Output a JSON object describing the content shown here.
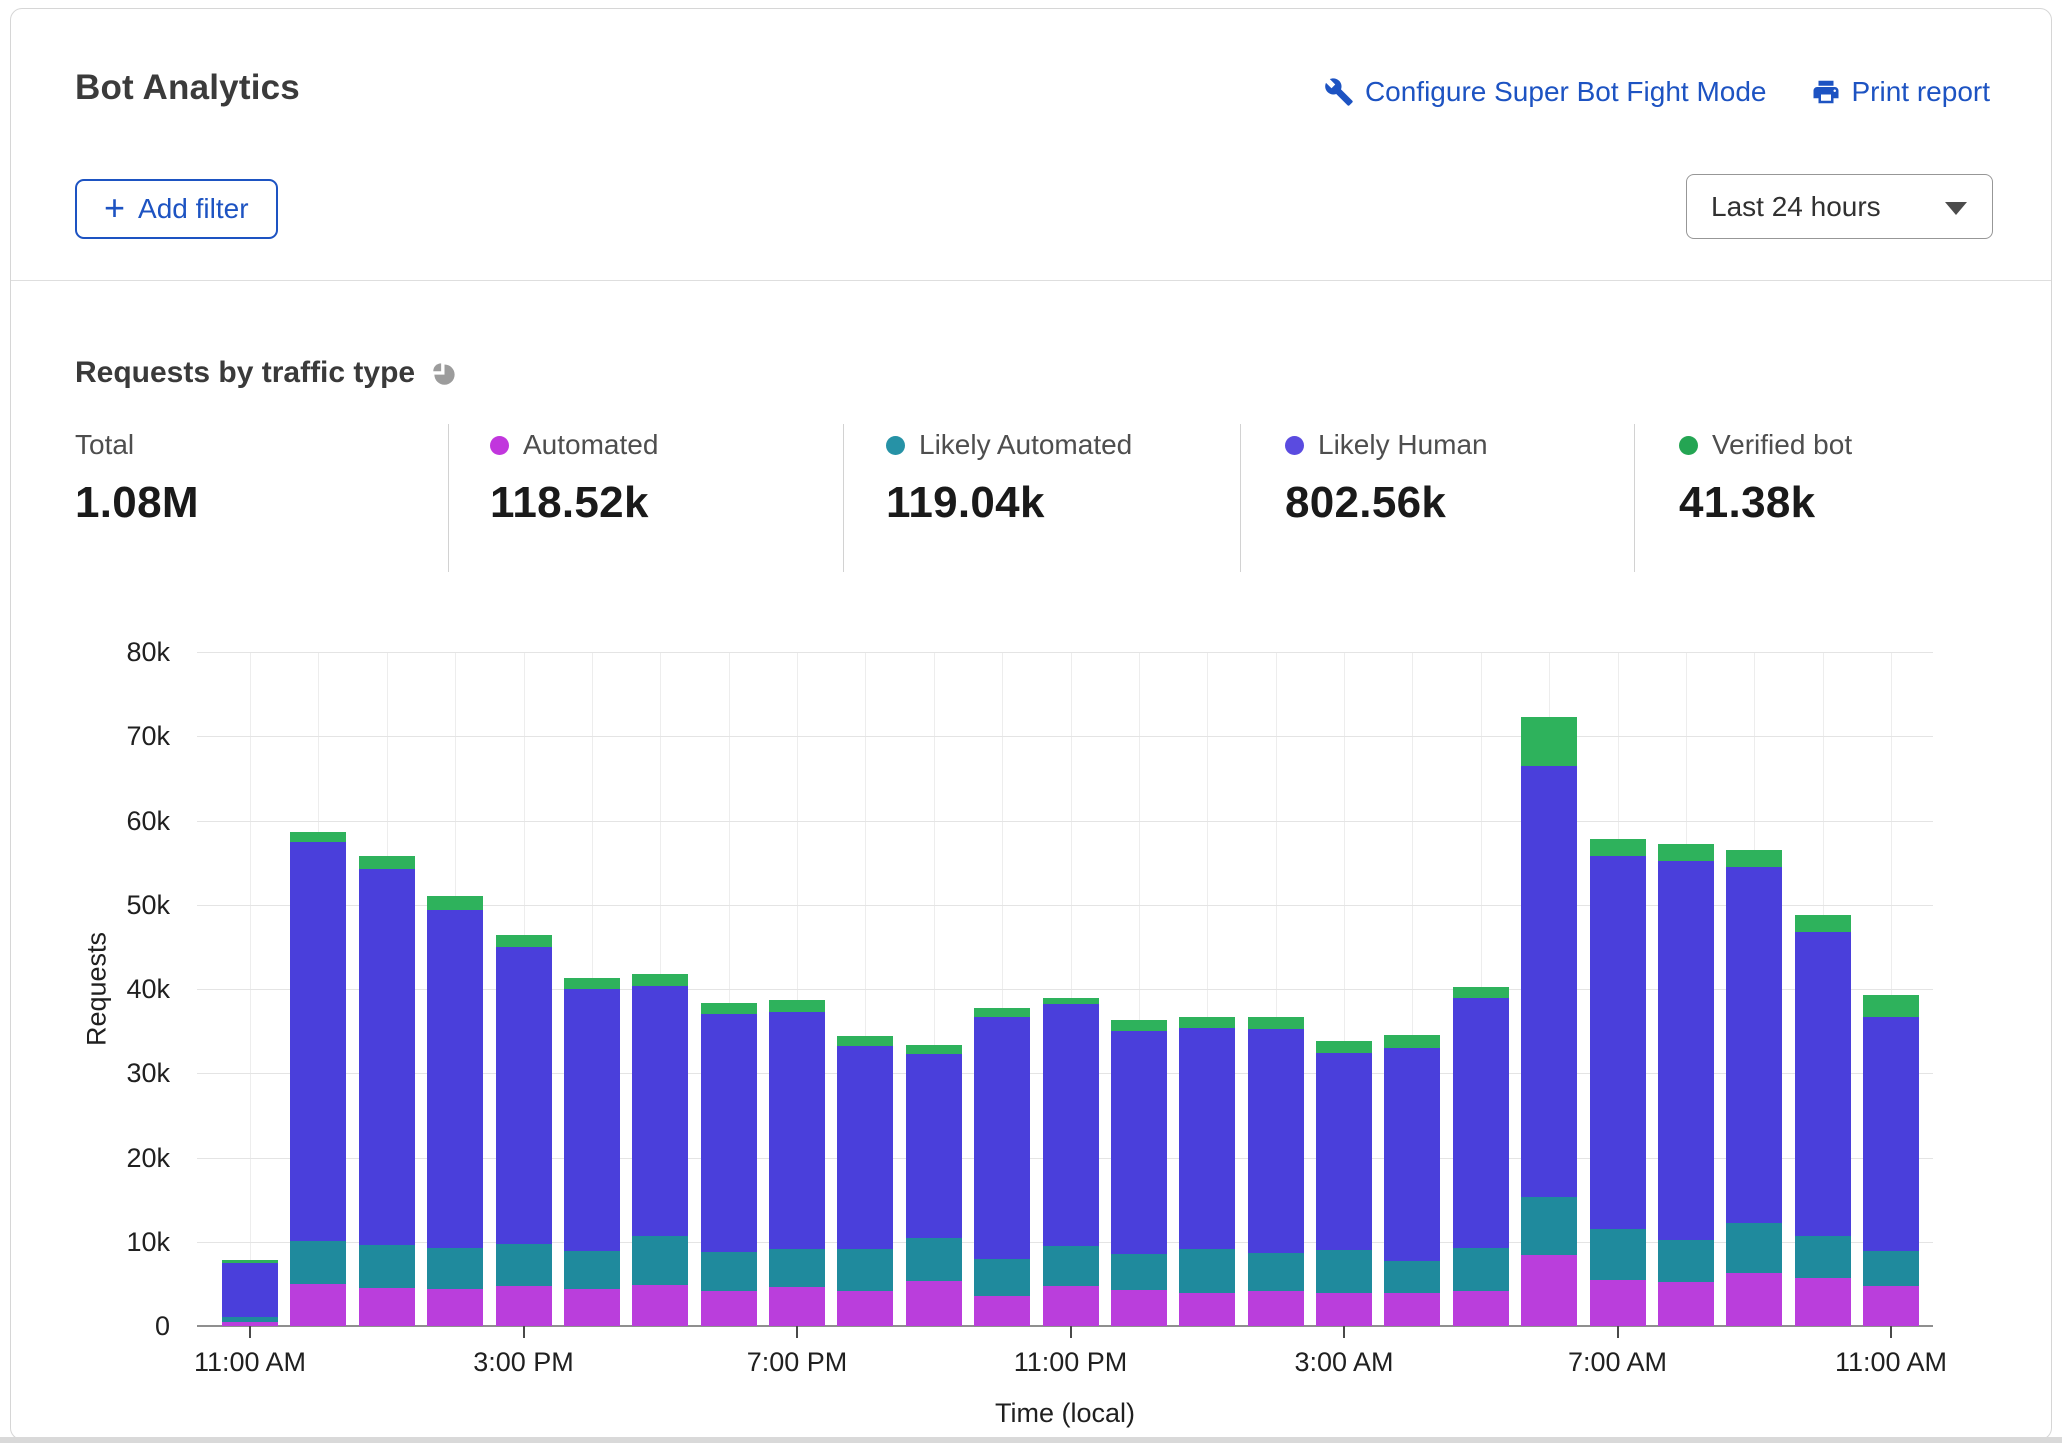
{
  "header": {
    "title": "Bot Analytics",
    "links": [
      {
        "label": "Configure Super Bot Fight Mode",
        "icon": "wrench-icon"
      },
      {
        "label": "Print report",
        "icon": "printer-icon"
      }
    ],
    "add_filter_label": "Add filter",
    "time_range": "Last 24 hours"
  },
  "section": {
    "title": "Requests by traffic type",
    "icon": "pie-chart-icon"
  },
  "stats": [
    {
      "label": "Total",
      "value": "1.08M",
      "color": null
    },
    {
      "label": "Automated",
      "value": "118.52k",
      "color": "#c136dd"
    },
    {
      "label": "Likely Automated",
      "value": "119.04k",
      "color": "#2692a6"
    },
    {
      "label": "Likely Human",
      "value": "802.56k",
      "color": "#5a4be0"
    },
    {
      "label": "Verified bot",
      "value": "41.38k",
      "color": "#24a553"
    }
  ],
  "colors": {
    "link_blue": "#1d53c2",
    "grid": "#e4e4e4",
    "axis_text": "#202020"
  },
  "chart_data": {
    "type": "bar",
    "stacked": true,
    "title": "Requests by traffic type",
    "xlabel": "Time (local)",
    "ylabel": "Requests",
    "ylim": [
      0,
      80000
    ],
    "grid": true,
    "n_bars": 25,
    "bar_interval": "1 hour",
    "yticks": [
      {
        "value": 0,
        "label": "0"
      },
      {
        "value": 10000,
        "label": "10k"
      },
      {
        "value": 20000,
        "label": "20k"
      },
      {
        "value": 30000,
        "label": "30k"
      },
      {
        "value": 40000,
        "label": "40k"
      },
      {
        "value": 50000,
        "label": "50k"
      },
      {
        "value": 60000,
        "label": "60k"
      },
      {
        "value": 70000,
        "label": "70k"
      },
      {
        "value": 80000,
        "label": "80k"
      }
    ],
    "xticks": [
      {
        "slot": 0,
        "label": "11:00 AM"
      },
      {
        "slot": 4,
        "label": "3:00 PM"
      },
      {
        "slot": 8,
        "label": "7:00 PM"
      },
      {
        "slot": 12,
        "label": "11:00 PM"
      },
      {
        "slot": 16,
        "label": "3:00 AM"
      },
      {
        "slot": 20,
        "label": "7:00 AM"
      },
      {
        "slot": 24,
        "label": "11:00 AM"
      }
    ],
    "series": [
      {
        "name": "Automated",
        "color": "#ba3edc",
        "values": [
          500,
          5000,
          4500,
          4400,
          4800,
          4400,
          4900,
          4100,
          4600,
          4200,
          5300,
          3600,
          4700,
          4300,
          3900,
          4200,
          3900,
          3900,
          4100,
          8400,
          5500,
          5200,
          6300,
          5700,
          4700
        ]
      },
      {
        "name": "Likely Automated",
        "color": "#1f8a9d",
        "values": [
          600,
          5100,
          5100,
          4900,
          4900,
          4500,
          5800,
          4700,
          4500,
          4900,
          5200,
          4300,
          4800,
          4300,
          5300,
          4500,
          5100,
          3800,
          5200,
          6900,
          6000,
          5000,
          5900,
          5000,
          4200
        ]
      },
      {
        "name": "Likely Human",
        "color": "#4a3fdb",
        "values": [
          6400,
          47300,
          44600,
          40100,
          35300,
          31100,
          29600,
          28200,
          28200,
          24100,
          21800,
          28800,
          28700,
          26400,
          26200,
          26600,
          23400,
          25300,
          29600,
          51200,
          44300,
          45000,
          42300,
          36100,
          27800
        ]
      },
      {
        "name": "Verified bot",
        "color": "#2eb25c",
        "values": [
          300,
          1200,
          1600,
          1700,
          1400,
          1300,
          1500,
          1400,
          1400,
          1200,
          1100,
          1100,
          700,
          1300,
          1300,
          1400,
          1400,
          1600,
          1400,
          5800,
          2000,
          2000,
          2000,
          2000,
          2600
        ]
      }
    ]
  }
}
